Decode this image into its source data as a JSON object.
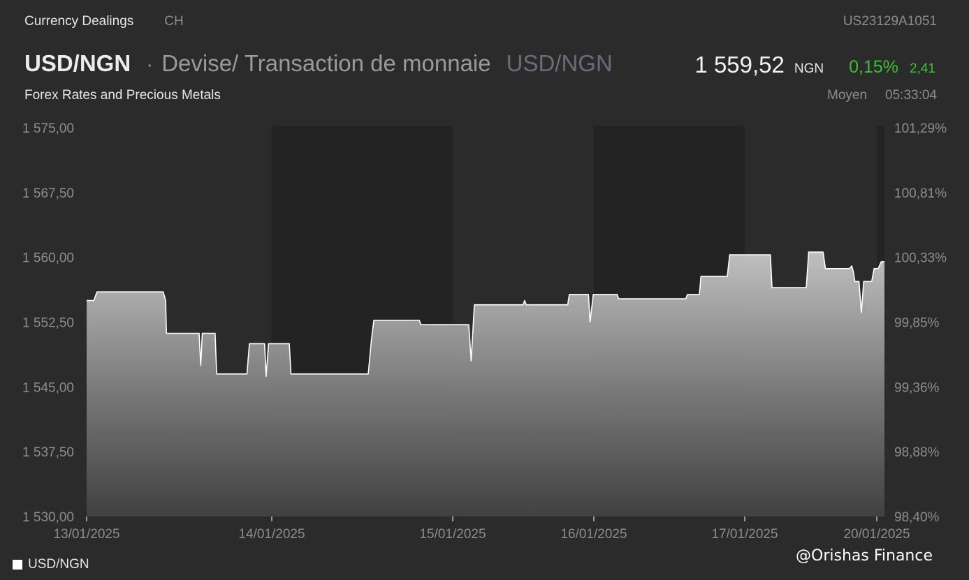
{
  "header": {
    "source": "Currency Dealings",
    "market": "CH",
    "isin": "US23129A1051",
    "pair": "USD/NGN",
    "separator": "·",
    "instrument_type": "Devise/ Transaction de monnaie",
    "pair_secondary": "USD/NGN",
    "price": "1 559,52",
    "currency": "NGN",
    "change_pct": "0,15%",
    "change_abs": "2,41",
    "subtitle": "Forex Rates and Precious Metals",
    "price_type": "Moyen",
    "time": "05:33:04"
  },
  "legend": {
    "series_label": "USD/NGN"
  },
  "watermark": "@Orishas Finance",
  "colors": {
    "background": "#2b2b2b",
    "band_shade": "#232323",
    "line": "#ffffff",
    "positive": "#3bc02f",
    "axis_text": "#8d8d8d"
  },
  "chart_data": {
    "type": "area",
    "ylim": [
      1530,
      1575
    ],
    "y_ticks": [
      "1 575,00",
      "1 567,50",
      "1 560,00",
      "1 552,50",
      "1 545,00",
      "1 537,50",
      "1 530,00"
    ],
    "y2_ticks": [
      "101,29%",
      "100,81%",
      "100,33%",
      "99,85%",
      "99,36%",
      "98,88%",
      "98,40%"
    ],
    "x_ticks": [
      "13/01/2025",
      "14/01/2025",
      "15/01/2025",
      "16/01/2025",
      "17/01/2025",
      "20/01/2025"
    ],
    "shaded_days": [
      "14/01/2025",
      "16/01/2025",
      "20/01/2025"
    ],
    "series": [
      {
        "name": "USD/NGN",
        "points": [
          [
            0.0,
            1555.0
          ],
          [
            0.009,
            1555.0
          ],
          [
            0.013,
            1556.0
          ],
          [
            0.096,
            1556.0
          ],
          [
            0.099,
            1555.0
          ],
          [
            0.1,
            1551.2
          ],
          [
            0.141,
            1551.2
          ],
          [
            0.143,
            1547.5
          ],
          [
            0.145,
            1551.2
          ],
          [
            0.161,
            1551.2
          ],
          [
            0.163,
            1546.5
          ],
          [
            0.201,
            1546.5
          ],
          [
            0.204,
            1550.0
          ],
          [
            0.223,
            1550.0
          ],
          [
            0.225,
            1546.2
          ],
          [
            0.228,
            1550.0
          ],
          [
            0.254,
            1550.0
          ],
          [
            0.256,
            1546.5
          ],
          [
            0.353,
            1546.5
          ],
          [
            0.357,
            1550.5
          ],
          [
            0.36,
            1552.7
          ],
          [
            0.417,
            1552.7
          ],
          [
            0.419,
            1552.2
          ],
          [
            0.479,
            1552.2
          ],
          [
            0.482,
            1548.0
          ],
          [
            0.486,
            1554.5
          ],
          [
            0.547,
            1554.5
          ],
          [
            0.549,
            1555.0
          ],
          [
            0.551,
            1554.5
          ],
          [
            0.603,
            1554.5
          ],
          [
            0.605,
            1555.7
          ],
          [
            0.629,
            1555.7
          ],
          [
            0.631,
            1552.5
          ],
          [
            0.635,
            1555.7
          ],
          [
            0.665,
            1555.7
          ],
          [
            0.667,
            1555.2
          ],
          [
            0.751,
            1555.2
          ],
          [
            0.753,
            1555.7
          ],
          [
            0.768,
            1555.7
          ],
          [
            0.77,
            1557.8
          ],
          [
            0.803,
            1557.8
          ],
          [
            0.806,
            1560.3
          ],
          [
            0.857,
            1560.3
          ],
          [
            0.859,
            1556.5
          ],
          [
            0.902,
            1556.5
          ],
          [
            0.905,
            1560.6
          ],
          [
            0.923,
            1560.6
          ],
          [
            0.926,
            1558.7
          ],
          [
            0.956,
            1558.7
          ],
          [
            0.959,
            1559.0
          ],
          [
            0.961,
            1558.3
          ],
          [
            0.963,
            1557.2
          ],
          [
            0.968,
            1557.2
          ],
          [
            0.971,
            1553.6
          ],
          [
            0.974,
            1557.2
          ],
          [
            0.984,
            1557.2
          ],
          [
            0.987,
            1558.7
          ],
          [
            0.992,
            1558.7
          ],
          [
            0.996,
            1559.5
          ],
          [
            1.0,
            1559.5
          ]
        ]
      }
    ]
  }
}
